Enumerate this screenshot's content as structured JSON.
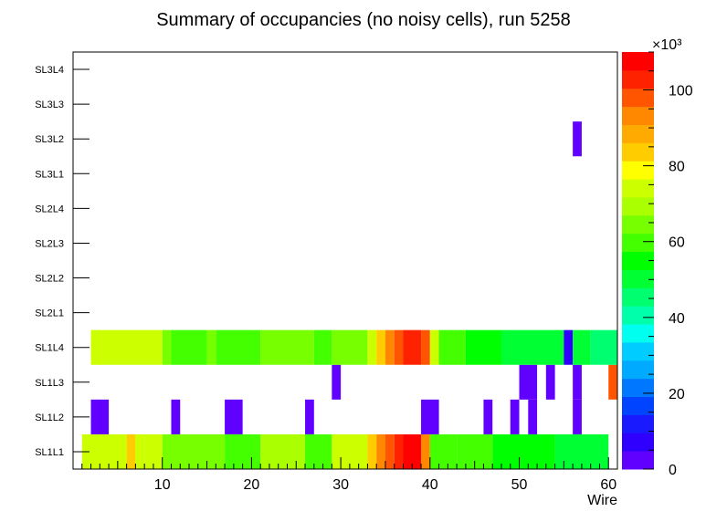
{
  "chart_data": {
    "type": "heatmap",
    "title": "Summary of occupancies (no noisy cells), run 5258",
    "xlabel": "Wire",
    "ylabel": "",
    "xlim": [
      0,
      61
    ],
    "x_ticks": [
      10,
      20,
      30,
      40,
      50,
      60
    ],
    "y_categories": [
      "SL1L1",
      "SL1L2",
      "SL1L3",
      "SL1L4",
      "SL2L1",
      "SL2L2",
      "SL2L3",
      "SL2L4",
      "SL3L1",
      "SL3L2",
      "SL3L3",
      "SL3L4"
    ],
    "z_range": [
      0,
      110000
    ],
    "z_exponent_label": "×10³",
    "z_ticks": [
      {
        "value": 0,
        "label": "0"
      },
      {
        "value": 20000,
        "label": "20"
      },
      {
        "value": 40000,
        "label": "40"
      },
      {
        "value": 60000,
        "label": "60"
      },
      {
        "value": 80000,
        "label": "80"
      },
      {
        "value": 100000,
        "label": "100"
      }
    ],
    "palette": [
      "#6000ff",
      "#3000ff",
      "#1a1aff",
      "#0044ff",
      "#0077ff",
      "#00aaff",
      "#00ccff",
      "#00ffee",
      "#00ffaa",
      "#00ff70",
      "#00ff33",
      "#00ff00",
      "#44ff00",
      "#77ff00",
      "#aaff00",
      "#ccff00",
      "#ffff00",
      "#ffcc00",
      "#ffaa00",
      "#ff8800",
      "#ff5500",
      "#ff2200",
      "#ff0000"
    ],
    "rows": [
      {
        "layer": "SL1L1",
        "runs": [
          [
            1,
            5,
            72000
          ],
          [
            6,
            6,
            84000
          ],
          [
            7,
            7,
            76000
          ],
          [
            8,
            9,
            72000
          ],
          [
            10,
            16,
            64000
          ],
          [
            17,
            20,
            62000
          ],
          [
            21,
            25,
            70000
          ],
          [
            26,
            28,
            62000
          ],
          [
            29,
            32,
            74000
          ],
          [
            33,
            33,
            86000
          ],
          [
            34,
            34,
            92000
          ],
          [
            35,
            35,
            97000
          ],
          [
            36,
            36,
            101000
          ],
          [
            37,
            38,
            107000
          ],
          [
            39,
            39,
            95000
          ],
          [
            40,
            42,
            62000
          ],
          [
            43,
            46,
            60000
          ],
          [
            47,
            53,
            54000
          ],
          [
            54,
            59,
            50000
          ]
        ]
      },
      {
        "layer": "SL1L2",
        "runs": [
          [
            2,
            3,
            3000
          ],
          [
            11,
            11,
            3000
          ],
          [
            17,
            18,
            3000
          ],
          [
            26,
            26,
            3000
          ],
          [
            39,
            40,
            3000
          ],
          [
            46,
            46,
            3000
          ],
          [
            49,
            49,
            3000
          ],
          [
            51,
            51,
            3000
          ],
          [
            56,
            56,
            3000
          ]
        ]
      },
      {
        "layer": "SL1L3",
        "runs": [
          [
            29,
            29,
            3000
          ],
          [
            50,
            51,
            3000
          ],
          [
            53,
            53,
            3000
          ],
          [
            56,
            56,
            3000
          ],
          [
            60,
            60,
            98000
          ]
        ]
      },
      {
        "layer": "SL1L4",
        "runs": [
          [
            2,
            9,
            72000
          ],
          [
            10,
            10,
            66000
          ],
          [
            11,
            14,
            62000
          ],
          [
            15,
            15,
            66000
          ],
          [
            16,
            20,
            62000
          ],
          [
            21,
            26,
            64000
          ],
          [
            27,
            28,
            62000
          ],
          [
            29,
            32,
            64000
          ],
          [
            33,
            33,
            76000
          ],
          [
            34,
            34,
            86000
          ],
          [
            35,
            35,
            92000
          ],
          [
            36,
            36,
            96000
          ],
          [
            37,
            38,
            102000
          ],
          [
            39,
            39,
            96000
          ],
          [
            40,
            40,
            76000
          ],
          [
            41,
            43,
            62000
          ],
          [
            44,
            47,
            56000
          ],
          [
            48,
            54,
            52000
          ],
          [
            55,
            55,
            6000
          ],
          [
            56,
            57,
            50000
          ],
          [
            58,
            60,
            44000
          ]
        ]
      },
      {
        "layer": "SL2L1",
        "runs": []
      },
      {
        "layer": "SL2L2",
        "runs": []
      },
      {
        "layer": "SL2L3",
        "runs": []
      },
      {
        "layer": "SL2L4",
        "runs": []
      },
      {
        "layer": "SL3L1",
        "runs": []
      },
      {
        "layer": "SL3L2",
        "runs": [
          [
            56,
            56,
            3000
          ]
        ]
      },
      {
        "layer": "SL3L3",
        "runs": []
      },
      {
        "layer": "SL3L4",
        "runs": []
      }
    ]
  }
}
